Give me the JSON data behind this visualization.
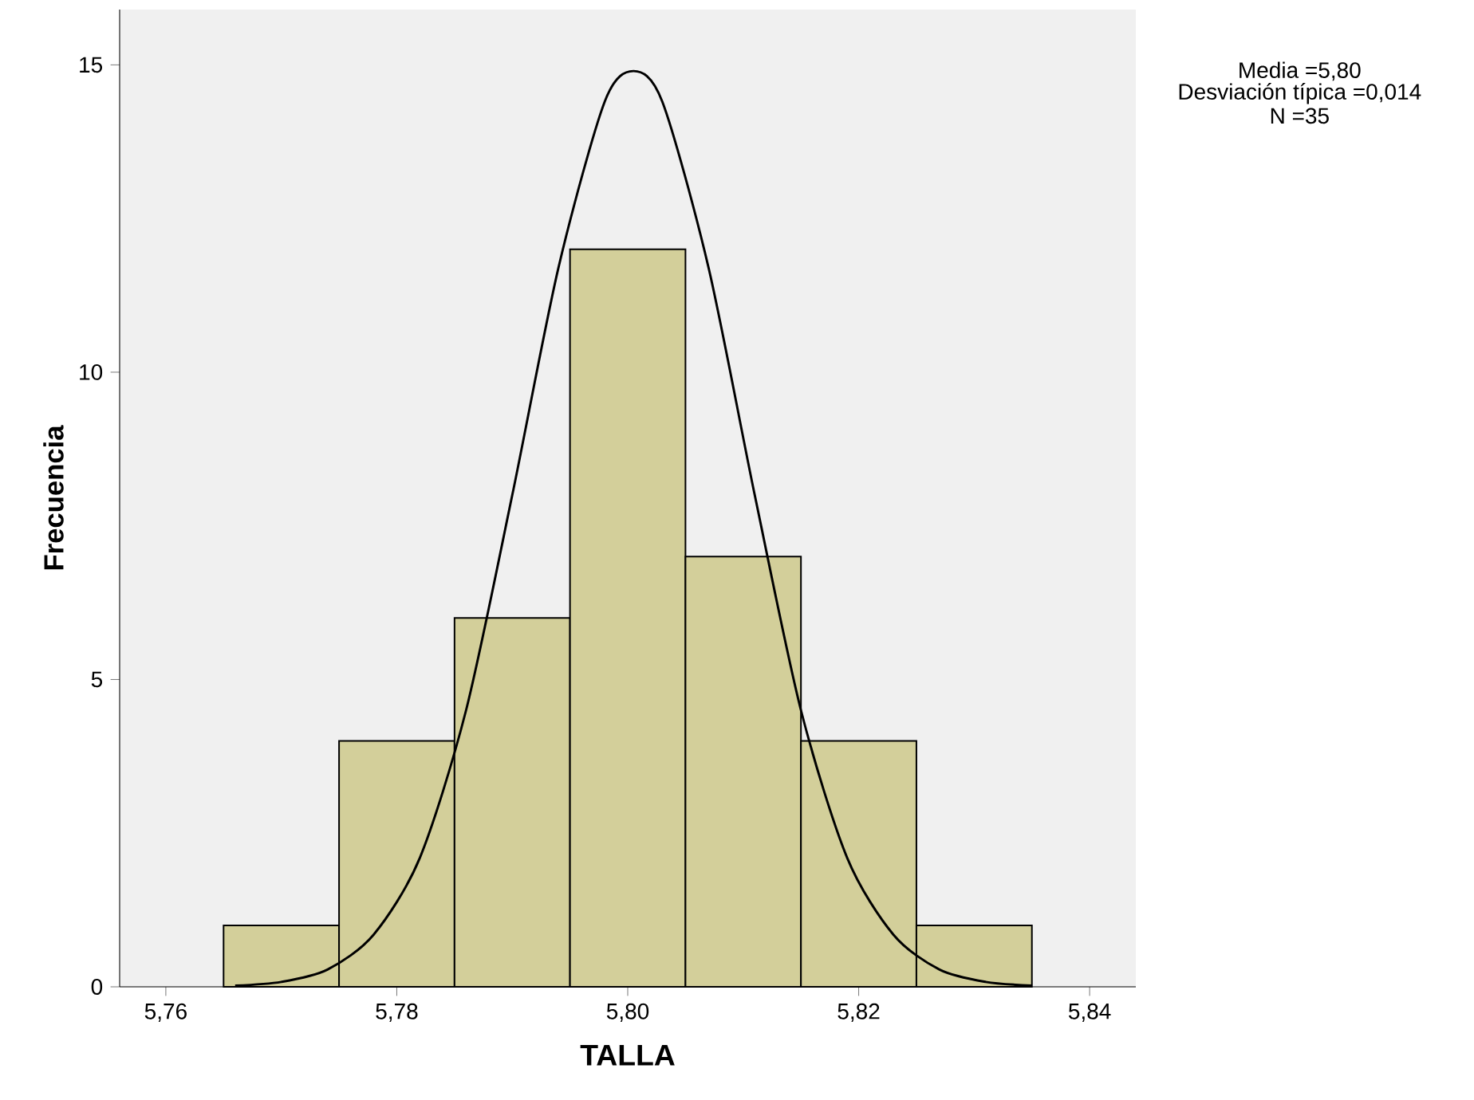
{
  "chart_data": {
    "type": "histogram",
    "xlabel": "TALLA",
    "ylabel": "Frecuencia",
    "annotations": [
      "Media =5,80",
      "Desviación típica =0,014",
      "N =35"
    ],
    "bins": [
      5.765,
      5.775,
      5.785,
      5.795,
      5.805,
      5.815,
      5.825,
      5.835
    ],
    "values": [
      1,
      4,
      6,
      12,
      7,
      4,
      1
    ],
    "color": "#d3cf9a",
    "series": [
      {
        "type": "line",
        "color": "#000000",
        "x": [
          5.766,
          5.77,
          5.774,
          5.778,
          5.782,
          5.786,
          5.79,
          5.794,
          5.798,
          5.8005,
          5.803,
          5.807,
          5.811,
          5.815,
          5.819,
          5.823,
          5.827,
          5.831,
          5.835
        ],
        "values": [
          0.02,
          0.08,
          0.28,
          0.85,
          2.1,
          4.5,
          8.0,
          11.7,
          14.4,
          14.9,
          14.4,
          11.7,
          8.0,
          4.5,
          2.1,
          0.85,
          0.28,
          0.08,
          0.02
        ]
      }
    ],
    "xlim": [
      5.756,
      5.844
    ],
    "ylim": [
      0,
      15.9
    ],
    "xticks": [
      {
        "value": 5.76,
        "label": "5,76"
      },
      {
        "value": 5.78,
        "label": "5,78"
      },
      {
        "value": 5.8,
        "label": "5,80"
      },
      {
        "value": 5.82,
        "label": "5,82"
      },
      {
        "value": 5.84,
        "label": "5,84"
      }
    ],
    "yticks": [
      0,
      5,
      10,
      15
    ],
    "grid": false
  }
}
